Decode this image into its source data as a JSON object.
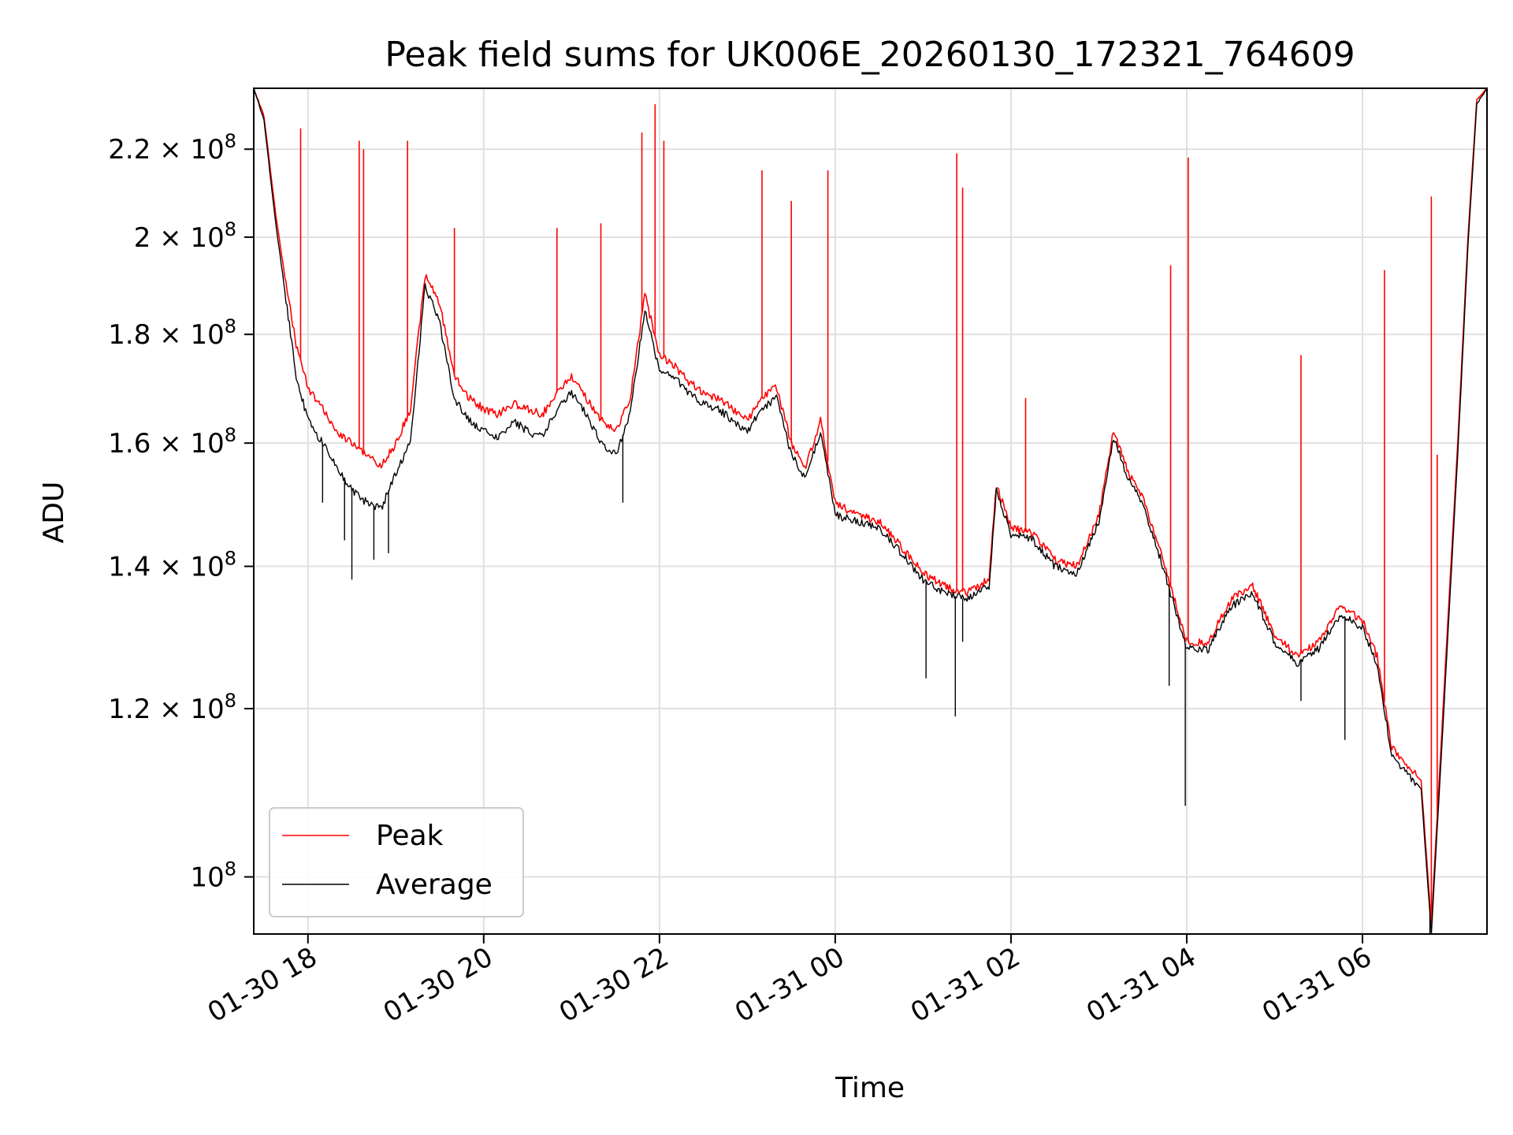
{
  "chart_data": {
    "type": "line",
    "title": "Peak field sums for UK006E_20260130_172321_764609",
    "xlabel": "Time",
    "ylabel": "ADU",
    "y_scale": "log",
    "grid": true,
    "legend_position": "lower-left",
    "xlim": [
      "2026-01-30 17:23",
      "2026-01-31 07:25"
    ],
    "ylim": [
      94000000,
      235000000
    ],
    "x_ticks": [
      {
        "value": "2026-01-30 18:00",
        "label": "01-30 18"
      },
      {
        "value": "2026-01-30 20:00",
        "label": "01-30 20"
      },
      {
        "value": "2026-01-30 22:00",
        "label": "01-30 22"
      },
      {
        "value": "2026-01-31 00:00",
        "label": "01-31 00"
      },
      {
        "value": "2026-01-31 02:00",
        "label": "01-31 02"
      },
      {
        "value": "2026-01-31 04:00",
        "label": "01-31 04"
      },
      {
        "value": "2026-01-31 06:00",
        "label": "01-31 06"
      }
    ],
    "y_ticks": [
      {
        "value": 100000000,
        "mantissa": "",
        "exponent": "8",
        "label": "10^8"
      },
      {
        "value": 120000000,
        "mantissa": "1.2 × 10",
        "exponent": "8",
        "label": "1.2 × 10^8"
      },
      {
        "value": 140000000,
        "mantissa": "1.4 × 10",
        "exponent": "8",
        "label": "1.4 × 10^8"
      },
      {
        "value": 160000000,
        "mantissa": "1.6 × 10",
        "exponent": "8",
        "label": "1.6 × 10^8"
      },
      {
        "value": 180000000,
        "mantissa": "1.8 × 10",
        "exponent": "8",
        "label": "1.8 × 10^8"
      },
      {
        "value": 200000000,
        "mantissa": "2 × 10",
        "exponent": "8",
        "label": "2 × 10^8"
      },
      {
        "value": 220000000,
        "mantissa": "2.2 × 10",
        "exponent": "8",
        "label": "2.2 × 10^8"
      }
    ],
    "series": [
      {
        "name": "Peak",
        "color": "#ff0000",
        "points": [
          [
            "2026-01-30 17:23",
            240000000
          ],
          [
            "2026-01-30 17:30",
            228000000
          ],
          [
            "2026-01-30 17:38",
            205000000
          ],
          [
            "2026-01-30 17:45",
            190000000
          ],
          [
            "2026-01-30 17:52",
            178000000
          ],
          [
            "2026-01-30 18:00",
            170000000
          ],
          [
            "2026-01-30 18:10",
            166000000
          ],
          [
            "2026-01-30 18:20",
            162000000
          ],
          [
            "2026-01-30 18:30",
            160000000
          ],
          [
            "2026-01-30 18:40",
            158000000
          ],
          [
            "2026-01-30 18:50",
            156000000
          ],
          [
            "2026-01-30 19:00",
            160000000
          ],
          [
            "2026-01-30 19:10",
            166000000
          ],
          [
            "2026-01-30 19:20",
            192000000
          ],
          [
            "2026-01-30 19:30",
            186000000
          ],
          [
            "2026-01-30 19:40",
            172000000
          ],
          [
            "2026-01-30 19:50",
            168000000
          ],
          [
            "2026-01-30 20:00",
            166000000
          ],
          [
            "2026-01-30 20:10",
            165000000
          ],
          [
            "2026-01-30 20:20",
            167000000
          ],
          [
            "2026-01-30 20:30",
            166000000
          ],
          [
            "2026-01-30 20:40",
            165000000
          ],
          [
            "2026-01-30 20:50",
            169000000
          ],
          [
            "2026-01-30 21:00",
            172000000
          ],
          [
            "2026-01-30 21:10",
            168000000
          ],
          [
            "2026-01-30 21:20",
            164000000
          ],
          [
            "2026-01-30 21:30",
            162000000
          ],
          [
            "2026-01-30 21:40",
            168000000
          ],
          [
            "2026-01-30 21:50",
            188000000
          ],
          [
            "2026-01-30 22:00",
            176000000
          ],
          [
            "2026-01-30 22:10",
            174000000
          ],
          [
            "2026-01-30 22:20",
            171000000
          ],
          [
            "2026-01-30 22:30",
            169000000
          ],
          [
            "2026-01-30 22:40",
            168000000
          ],
          [
            "2026-01-30 22:50",
            166000000
          ],
          [
            "2026-01-30 23:00",
            164000000
          ],
          [
            "2026-01-30 23:10",
            168000000
          ],
          [
            "2026-01-30 23:20",
            170000000
          ],
          [
            "2026-01-30 23:30",
            160000000
          ],
          [
            "2026-01-30 23:40",
            156000000
          ],
          [
            "2026-01-30 23:50",
            164000000
          ],
          [
            "2026-01-31 00:00",
            150000000
          ],
          [
            "2026-01-31 00:15",
            148000000
          ],
          [
            "2026-01-31 00:30",
            147000000
          ],
          [
            "2026-01-31 00:45",
            143000000
          ],
          [
            "2026-01-31 01:00",
            139000000
          ],
          [
            "2026-01-31 01:15",
            137000000
          ],
          [
            "2026-01-31 01:30",
            136000000
          ],
          [
            "2026-01-31 01:45",
            138000000
          ],
          [
            "2026-01-31 01:50",
            153000000
          ],
          [
            "2026-01-31 02:00",
            146000000
          ],
          [
            "2026-01-31 02:15",
            145000000
          ],
          [
            "2026-01-31 02:30",
            141000000
          ],
          [
            "2026-01-31 02:45",
            140000000
          ],
          [
            "2026-01-31 03:00",
            148000000
          ],
          [
            "2026-01-31 03:10",
            162000000
          ],
          [
            "2026-01-31 03:20",
            155000000
          ],
          [
            "2026-01-31 03:30",
            151000000
          ],
          [
            "2026-01-31 03:45",
            140000000
          ],
          [
            "2026-01-31 04:00",
            129000000
          ],
          [
            "2026-01-31 04:15",
            129000000
          ],
          [
            "2026-01-31 04:30",
            135000000
          ],
          [
            "2026-01-31 04:45",
            137000000
          ],
          [
            "2026-01-31 05:00",
            130000000
          ],
          [
            "2026-01-31 05:15",
            127000000
          ],
          [
            "2026-01-31 05:30",
            129000000
          ],
          [
            "2026-01-31 05:45",
            134000000
          ],
          [
            "2026-01-31 06:00",
            132000000
          ],
          [
            "2026-01-31 06:10",
            127000000
          ],
          [
            "2026-01-31 06:20",
            115000000
          ],
          [
            "2026-01-31 06:30",
            113000000
          ],
          [
            "2026-01-31 06:40",
            111000000
          ],
          [
            "2026-01-31 06:47",
            95000000
          ],
          [
            "2026-01-31 06:55",
            120000000
          ],
          [
            "2026-01-31 07:05",
            160000000
          ],
          [
            "2026-01-31 07:12",
            200000000
          ],
          [
            "2026-01-31 07:18",
            232000000
          ],
          [
            "2026-01-31 07:25",
            236000000
          ]
        ],
        "spikes": [
          [
            "2026-01-30 17:55",
            225000000
          ],
          [
            "2026-01-30 18:35",
            222000000
          ],
          [
            "2026-01-30 18:38",
            220000000
          ],
          [
            "2026-01-30 19:08",
            222000000
          ],
          [
            "2026-01-30 19:40",
            202000000
          ],
          [
            "2026-01-30 20:50",
            202000000
          ],
          [
            "2026-01-30 21:20",
            203000000
          ],
          [
            "2026-01-30 21:48",
            224000000
          ],
          [
            "2026-01-30 21:57",
            231000000
          ],
          [
            "2026-01-30 22:03",
            222000000
          ],
          [
            "2026-01-30 23:10",
            215000000
          ],
          [
            "2026-01-30 23:30",
            208000000
          ],
          [
            "2026-01-30 23:55",
            215000000
          ],
          [
            "2026-01-31 01:23",
            219000000
          ],
          [
            "2026-01-31 01:27",
            211000000
          ],
          [
            "2026-01-31 02:10",
            168000000
          ],
          [
            "2026-01-31 03:49",
            194000000
          ],
          [
            "2026-01-31 04:01",
            218000000
          ],
          [
            "2026-01-31 05:18",
            176000000
          ],
          [
            "2026-01-31 06:15",
            193000000
          ],
          [
            "2026-01-31 06:47",
            209000000
          ],
          [
            "2026-01-31 06:51",
            158000000
          ]
        ]
      },
      {
        "name": "Average",
        "color": "#000000",
        "points": [
          [
            "2026-01-30 17:23",
            240000000
          ],
          [
            "2026-01-30 17:30",
            227000000
          ],
          [
            "2026-01-30 17:38",
            203000000
          ],
          [
            "2026-01-30 17:45",
            187000000
          ],
          [
            "2026-01-30 17:52",
            172000000
          ],
          [
            "2026-01-30 18:00",
            164000000
          ],
          [
            "2026-01-30 18:10",
            160000000
          ],
          [
            "2026-01-30 18:20",
            156000000
          ],
          [
            "2026-01-30 18:30",
            152000000
          ],
          [
            "2026-01-30 18:40",
            150000000
          ],
          [
            "2026-01-30 18:50",
            149000000
          ],
          [
            "2026-01-30 19:00",
            155000000
          ],
          [
            "2026-01-30 19:10",
            160000000
          ],
          [
            "2026-01-30 19:20",
            190000000
          ],
          [
            "2026-01-30 19:30",
            182000000
          ],
          [
            "2026-01-30 19:40",
            168000000
          ],
          [
            "2026-01-30 19:50",
            164000000
          ],
          [
            "2026-01-30 20:00",
            162000000
          ],
          [
            "2026-01-30 20:10",
            161000000
          ],
          [
            "2026-01-30 20:20",
            164000000
          ],
          [
            "2026-01-30 20:30",
            162000000
          ],
          [
            "2026-01-30 20:40",
            161000000
          ],
          [
            "2026-01-30 20:50",
            166000000
          ],
          [
            "2026-01-30 21:00",
            169000000
          ],
          [
            "2026-01-30 21:10",
            165000000
          ],
          [
            "2026-01-30 21:20",
            160000000
          ],
          [
            "2026-01-30 21:30",
            158000000
          ],
          [
            "2026-01-30 21:40",
            165000000
          ],
          [
            "2026-01-30 21:50",
            185000000
          ],
          [
            "2026-01-30 22:00",
            173000000
          ],
          [
            "2026-01-30 22:10",
            172000000
          ],
          [
            "2026-01-30 22:20",
            169000000
          ],
          [
            "2026-01-30 22:30",
            167000000
          ],
          [
            "2026-01-30 22:40",
            166000000
          ],
          [
            "2026-01-30 22:50",
            164000000
          ],
          [
            "2026-01-30 23:00",
            162000000
          ],
          [
            "2026-01-30 23:10",
            166000000
          ],
          [
            "2026-01-30 23:20",
            168000000
          ],
          [
            "2026-01-30 23:30",
            158000000
          ],
          [
            "2026-01-30 23:40",
            154000000
          ],
          [
            "2026-01-30 23:50",
            162000000
          ],
          [
            "2026-01-31 00:00",
            148000000
          ],
          [
            "2026-01-31 00:15",
            147000000
          ],
          [
            "2026-01-31 00:30",
            146000000
          ],
          [
            "2026-01-31 00:45",
            142000000
          ],
          [
            "2026-01-31 01:00",
            138000000
          ],
          [
            "2026-01-31 01:15",
            136000000
          ],
          [
            "2026-01-31 01:30",
            135000000
          ],
          [
            "2026-01-31 01:45",
            137000000
          ],
          [
            "2026-01-31 01:50",
            152000000
          ],
          [
            "2026-01-31 02:00",
            145000000
          ],
          [
            "2026-01-31 02:15",
            144000000
          ],
          [
            "2026-01-31 02:30",
            140000000
          ],
          [
            "2026-01-31 02:45",
            139000000
          ],
          [
            "2026-01-31 03:00",
            147000000
          ],
          [
            "2026-01-31 03:10",
            161000000
          ],
          [
            "2026-01-31 03:20",
            154000000
          ],
          [
            "2026-01-31 03:30",
            150000000
          ],
          [
            "2026-01-31 03:45",
            139000000
          ],
          [
            "2026-01-31 04:00",
            128000000
          ],
          [
            "2026-01-31 04:15",
            128000000
          ],
          [
            "2026-01-31 04:30",
            134000000
          ],
          [
            "2026-01-31 04:45",
            136000000
          ],
          [
            "2026-01-31 05:00",
            129000000
          ],
          [
            "2026-01-31 05:15",
            126000000
          ],
          [
            "2026-01-31 05:30",
            128000000
          ],
          [
            "2026-01-31 05:45",
            133000000
          ],
          [
            "2026-01-31 06:00",
            131000000
          ],
          [
            "2026-01-31 06:10",
            126000000
          ],
          [
            "2026-01-31 06:20",
            114000000
          ],
          [
            "2026-01-31 06:30",
            112000000
          ],
          [
            "2026-01-31 06:40",
            110000000
          ],
          [
            "2026-01-31 06:47",
            94000000
          ],
          [
            "2026-01-31 06:55",
            118000000
          ],
          [
            "2026-01-31 07:05",
            158000000
          ],
          [
            "2026-01-31 07:12",
            198000000
          ],
          [
            "2026-01-31 07:18",
            231000000
          ],
          [
            "2026-01-31 07:25",
            236000000
          ]
        ],
        "dips": [
          [
            "2026-01-30 18:10",
            150000000
          ],
          [
            "2026-01-30 18:25",
            144000000
          ],
          [
            "2026-01-30 18:30",
            138000000
          ],
          [
            "2026-01-30 18:45",
            141000000
          ],
          [
            "2026-01-30 18:55",
            142000000
          ],
          [
            "2026-01-30 21:35",
            150000000
          ],
          [
            "2026-01-31 01:02",
            124000000
          ],
          [
            "2026-01-31 01:22",
            119000000
          ],
          [
            "2026-01-31 01:27",
            129000000
          ],
          [
            "2026-01-31 03:48",
            123000000
          ],
          [
            "2026-01-31 03:59",
            108000000
          ],
          [
            "2026-01-31 05:18",
            121000000
          ],
          [
            "2026-01-31 05:48",
            116000000
          ],
          [
            "2026-01-31 06:46",
            94000000
          ]
        ]
      }
    ],
    "legend": [
      {
        "label": "Peak",
        "color": "#ff0000"
      },
      {
        "label": "Average",
        "color": "#000000"
      }
    ]
  }
}
